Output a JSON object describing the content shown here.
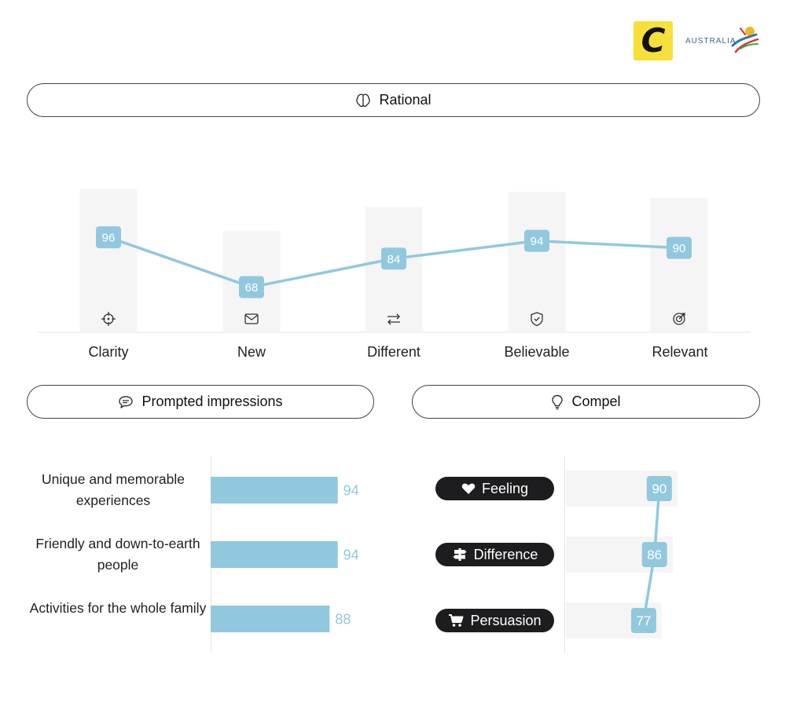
{
  "logos": {
    "c_letter": "C",
    "australia_text": "AUSTRALIA"
  },
  "sections": {
    "rational": {
      "title": "Rational",
      "icon": "brain-icon"
    },
    "prompted": {
      "title": "Prompted impressions",
      "icon": "speech-bubble-icon"
    },
    "compel": {
      "title": "Compel",
      "icon": "lightbulb-icon"
    }
  },
  "colors": {
    "accent": "#92c8de",
    "bar_grey": "#f5f5f5",
    "badge_dark": "#1d1d1f"
  },
  "chart_data": [
    {
      "type": "line",
      "categories": [
        "Clarity",
        "New",
        "Different",
        "Believable",
        "Relevant"
      ],
      "values": [
        96,
        68,
        84,
        94,
        90
      ],
      "category_icons": [
        "crosshair-icon",
        "envelope-icon",
        "swap-arrows-icon",
        "shield-check-icon",
        "target-arrow-icon"
      ],
      "ylim": [
        0,
        100
      ]
    },
    {
      "type": "bar",
      "orientation": "horizontal",
      "categories": [
        "Unique and memorable experiences",
        "Friendly and down-to-earth people",
        "Activities for the whole family"
      ],
      "values": [
        94,
        94,
        88
      ],
      "xlim": [
        0,
        100
      ]
    },
    {
      "type": "line",
      "orientation": "vertical",
      "categories": [
        "Feeling",
        "Difference",
        "Persuasion"
      ],
      "category_icons": [
        "heart-icon",
        "signpost-icon",
        "cart-icon"
      ],
      "values": [
        90,
        86,
        77
      ],
      "xlim": [
        0,
        100
      ]
    }
  ]
}
